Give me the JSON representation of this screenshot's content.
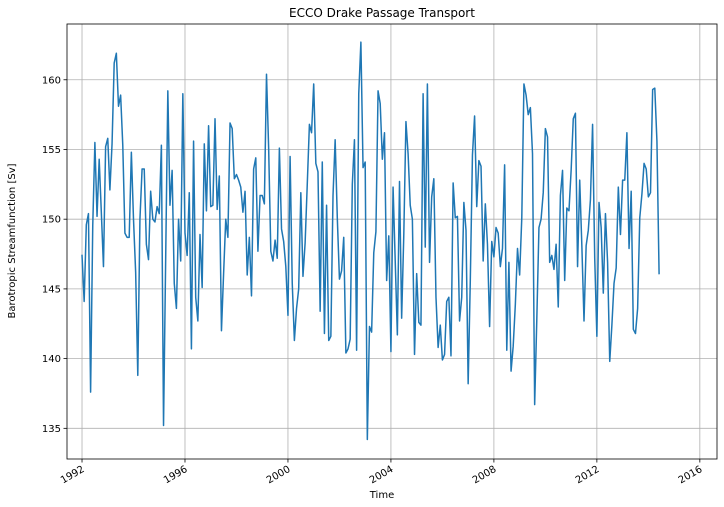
{
  "chart_data": {
    "type": "line",
    "title": "ECCO Drake Passage Transport",
    "xlabel": "Time",
    "ylabel": "Barotropic Streamfunction [Sv]",
    "x_tick_labels": [
      "1992",
      "1996",
      "2000",
      "2004",
      "2008",
      "2012",
      "2016"
    ],
    "y_tick_labels": [
      "135",
      "140",
      "145",
      "150",
      "155",
      "160"
    ],
    "xlim": [
      "1991-06",
      "2016-09"
    ],
    "ylim": [
      132.8,
      164.0
    ],
    "grid": true,
    "line_color": "#1f77b4",
    "x_start": "1992-01",
    "x_step": "monthly",
    "series": [
      {
        "values": [
          147.4,
          144.1,
          149.6,
          150.4,
          137.6,
          149.5,
          155.5,
          150.2,
          154.3,
          150.5,
          146.6,
          155.2,
          155.8,
          152.1,
          155.4,
          161.2,
          161.9,
          158.1,
          158.9,
          155.3,
          149.0,
          148.7,
          148.7,
          154.8,
          150.0,
          146.2,
          138.8,
          150.0,
          153.6,
          153.6,
          148.2,
          147.1,
          152.0,
          150.0,
          149.8,
          150.9,
          150.4,
          155.3,
          135.2,
          147.2,
          159.2,
          151.0,
          153.5,
          145.4,
          143.6,
          150.0,
          147.0,
          159.0,
          149.0,
          147.4,
          151.9,
          140.7,
          155.6,
          144.4,
          142.7,
          148.9,
          145.1,
          155.4,
          150.6,
          156.7,
          150.9,
          151.0,
          157.2,
          150.7,
          153.1,
          142.0,
          146.1,
          150.0,
          148.7,
          156.9,
          156.5,
          152.9,
          153.2,
          152.8,
          152.3,
          150.5,
          152.0,
          146.0,
          148.7,
          144.5,
          153.6,
          154.4,
          147.7,
          151.7,
          151.7,
          151.1,
          160.4,
          155.1,
          147.7,
          147.0,
          148.5,
          147.2,
          155.1,
          149.3,
          148.4,
          146.6,
          143.1,
          154.5,
          145.4,
          141.3,
          143.6,
          145.0,
          151.9,
          145.9,
          148.3,
          152.5,
          156.8,
          156.2,
          159.7,
          154.0,
          153.4,
          143.4,
          154.1,
          141.8,
          151.0,
          141.3,
          141.6,
          151.7,
          155.7,
          150.1,
          145.7,
          146.3,
          148.7,
          140.4,
          140.7,
          141.4,
          152.5,
          155.7,
          140.6,
          159.0,
          162.7,
          153.7,
          154.1,
          134.2,
          142.3,
          141.9,
          147.6,
          149.1,
          159.2,
          158.3,
          154.3,
          156.2,
          145.6,
          148.8,
          140.5,
          152.3,
          147.0,
          141.7,
          152.7,
          142.9,
          148.9,
          157.0,
          154.7,
          151.0,
          150.0,
          140.3,
          146.1,
          142.6,
          142.4,
          159.0,
          148.0,
          159.7,
          146.9,
          151.6,
          152.9,
          144.4,
          140.8,
          142.4,
          139.9,
          140.3,
          144.1,
          144.4,
          140.2,
          152.6,
          150.1,
          150.2,
          142.7,
          144.4,
          151.2,
          149.2,
          138.2,
          145.6,
          154.6,
          157.4,
          150.9,
          154.2,
          153.8,
          147.0,
          151.1,
          148.2,
          142.3,
          148.4,
          147.3,
          149.4,
          149.0,
          146.6,
          147.9,
          153.9,
          140.6,
          146.9,
          139.1,
          140.9,
          143.9,
          147.9,
          146.0,
          150.1,
          159.7,
          158.9,
          157.5,
          158.0,
          154.7,
          136.7,
          142.8,
          149.4,
          150.0,
          151.9,
          156.5,
          155.9,
          146.9,
          147.4,
          146.4,
          148.2,
          143.7,
          151.7,
          153.5,
          145.6,
          150.8,
          150.6,
          153.5,
          157.2,
          157.6,
          146.6,
          152.8,
          148.1,
          142.7,
          148.1,
          149.2,
          151.4,
          156.8,
          147.2,
          141.6,
          151.2,
          149.4,
          144.7,
          150.4,
          146.9,
          139.8,
          142.4,
          145.4,
          146.5,
          152.3,
          148.9,
          152.8,
          152.8,
          156.2,
          147.9,
          152.0,
          142.1,
          141.8,
          143.6,
          150.1,
          151.8,
          154.0,
          153.6,
          151.6,
          151.9,
          159.3,
          159.4,
          155.6,
          146.1
        ]
      }
    ]
  }
}
